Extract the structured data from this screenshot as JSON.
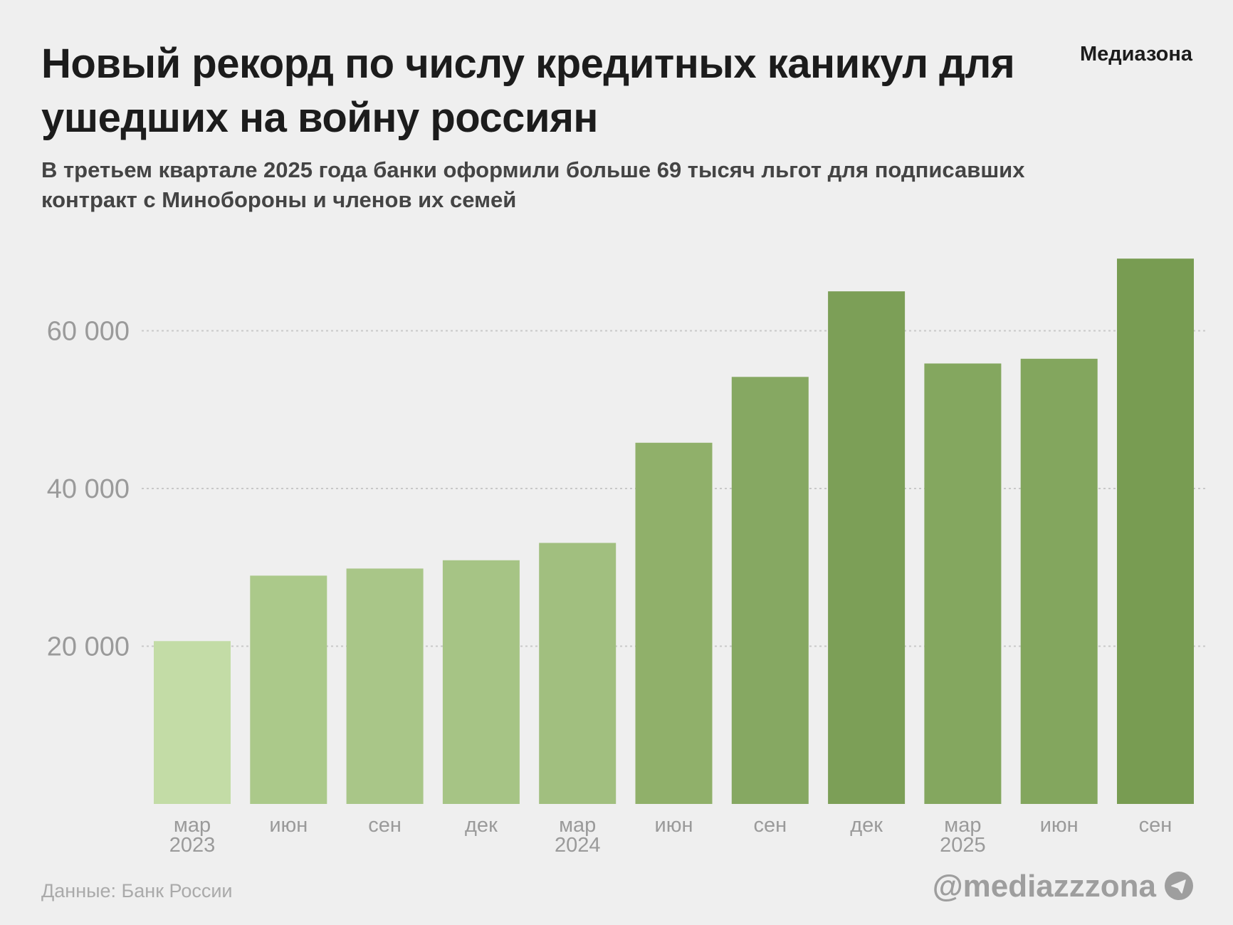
{
  "header": {
    "title": "Новый рекорд по числу кредитных каникул для ушедших на войну россиян",
    "brand": "Медиазона",
    "subtitle": "В третьем квартале 2025 года банки оформили больше 69 тысяч льгот для подписавших контракт с Минобороны и членов их семей"
  },
  "footer": {
    "source": "Данные: Банк России",
    "handle": "@mediazzzona",
    "handle_icon": "telegram-icon"
  },
  "chart_data": {
    "type": "bar",
    "categories": [
      "мар 2023",
      "июн",
      "сен",
      "дек",
      "мар 2024",
      "июн",
      "сен",
      "дек",
      "мар 2025",
      "июн",
      "сен"
    ],
    "month_labels": [
      "мар",
      "июн",
      "сен",
      "дек",
      "мар",
      "июн",
      "сен",
      "дек",
      "мар",
      "июн",
      "сен"
    ],
    "year_labels": [
      "2023",
      "",
      "",
      "",
      "2024",
      "",
      "",
      "",
      "2025",
      "",
      ""
    ],
    "values": [
      20650,
      28950,
      29850,
      30900,
      33100,
      45800,
      54150,
      65000,
      55850,
      56450,
      69150
    ],
    "colors": [
      "#c3dca6",
      "#abc98a",
      "#a9c688",
      "#a6c485",
      "#a1bf7f",
      "#90b06a",
      "#86a862",
      "#7c9f57",
      "#84a75f",
      "#83a65e",
      "#789c52"
    ],
    "yticks": [
      20000,
      40000,
      60000
    ],
    "ytick_labels": [
      "20 000",
      "40 000",
      "60 000"
    ],
    "ylim": [
      0,
      70000
    ],
    "grid": true,
    "xlabel": "",
    "ylabel": ""
  }
}
